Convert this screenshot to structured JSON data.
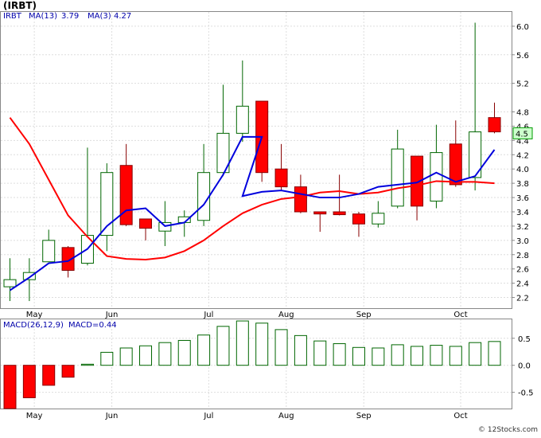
{
  "header": {
    "title": "(IRBT)"
  },
  "footer": {
    "copyright": "© 12Stocks.com"
  },
  "chart_data": [
    {
      "type": "candlestick",
      "ticker": "IRBT",
      "legend": {
        "ticker": "IRBT",
        "ma13_label": "MA(13)",
        "ma13_value": "3.79",
        "ma3_label": "MA(3)",
        "ma3_value": "4.27"
      },
      "x_labels": [
        "May",
        "Jun",
        "Jul",
        "Aug",
        "Sep",
        "Oct"
      ],
      "x_label_indices": [
        1.1,
        5.1,
        10.1,
        14.1,
        18.1,
        23.1
      ],
      "ylim": [
        2.05,
        6.2
      ],
      "y_ticks": [
        2.2,
        2.4,
        2.6,
        2.8,
        3.0,
        3.2,
        3.4,
        3.6,
        3.8,
        4.0,
        4.2,
        4.4,
        4.6,
        4.8,
        5.2,
        5.6,
        6.0
      ],
      "last_price_label": "4.5",
      "last_price": 4.5,
      "candles": [
        {
          "o": 2.35,
          "h": 2.75,
          "l": 2.15,
          "c": 2.45
        },
        {
          "o": 2.45,
          "h": 2.75,
          "l": 2.15,
          "c": 2.55
        },
        {
          "o": 2.7,
          "h": 3.15,
          "l": 2.7,
          "c": 3.0
        },
        {
          "o": 2.9,
          "h": 2.92,
          "l": 2.48,
          "c": 2.58
        },
        {
          "o": 2.68,
          "h": 4.3,
          "l": 2.65,
          "c": 3.07
        },
        {
          "o": 3.07,
          "h": 4.08,
          "l": 2.85,
          "c": 3.95
        },
        {
          "o": 4.05,
          "h": 4.35,
          "l": 3.2,
          "c": 3.22
        },
        {
          "o": 3.3,
          "h": 3.3,
          "l": 3.0,
          "c": 3.17
        },
        {
          "o": 3.13,
          "h": 3.55,
          "l": 2.92,
          "c": 3.25
        },
        {
          "o": 3.25,
          "h": 3.42,
          "l": 3.05,
          "c": 3.33
        },
        {
          "o": 3.28,
          "h": 4.35,
          "l": 3.2,
          "c": 3.95
        },
        {
          "o": 3.95,
          "h": 5.18,
          "l": 3.9,
          "c": 4.5
        },
        {
          "o": 4.5,
          "h": 5.52,
          "l": 4.38,
          "c": 4.88
        },
        {
          "o": 4.95,
          "h": 4.95,
          "l": 3.82,
          "c": 3.95
        },
        {
          "o": 4.0,
          "h": 4.35,
          "l": 3.7,
          "c": 3.75
        },
        {
          "o": 3.75,
          "h": 3.92,
          "l": 3.38,
          "c": 3.4
        },
        {
          "o": 3.4,
          "h": 3.4,
          "l": 3.12,
          "c": 3.37
        },
        {
          "o": 3.4,
          "h": 3.92,
          "l": 3.35,
          "c": 3.36
        },
        {
          "o": 3.37,
          "h": 3.4,
          "l": 3.05,
          "c": 3.23
        },
        {
          "o": 3.23,
          "h": 3.55,
          "l": 3.18,
          "c": 3.38
        },
        {
          "o": 3.48,
          "h": 4.55,
          "l": 3.45,
          "c": 4.28
        },
        {
          "o": 4.18,
          "h": 4.18,
          "l": 3.28,
          "c": 3.48
        },
        {
          "o": 3.55,
          "h": 4.62,
          "l": 3.45,
          "c": 4.23
        },
        {
          "o": 4.35,
          "h": 4.68,
          "l": 3.75,
          "c": 3.78
        },
        {
          "o": 3.88,
          "h": 6.05,
          "l": 3.7,
          "c": 4.52
        },
        {
          "o": 4.72,
          "h": 4.93,
          "l": 4.5,
          "c": 4.52
        }
      ],
      "ma13": [
        4.72,
        4.35,
        3.85,
        3.35,
        3.05,
        2.78,
        2.74,
        2.73,
        2.76,
        2.85,
        3.0,
        3.2,
        3.38,
        3.5,
        3.58,
        3.61,
        3.67,
        3.69,
        3.65,
        3.67,
        3.73,
        3.77,
        3.83,
        3.82,
        3.82,
        3.8
      ],
      "ma3": [
        2.3,
        2.48,
        2.68,
        2.71,
        2.88,
        3.2,
        3.42,
        3.45,
        3.2,
        3.25,
        3.5,
        3.92,
        4.45,
        4.45,
        null,
        null,
        null,
        null,
        null,
        null,
        null,
        null,
        null,
        null,
        null,
        null
      ],
      "ma3_tail": [
        3.62,
        3.68,
        3.7,
        3.65,
        3.6,
        3.6,
        3.65,
        3.75,
        3.78,
        3.81,
        3.95,
        3.82,
        3.9,
        4.27
      ],
      "colors": {
        "up": "#ffffff",
        "up_border": "#006600",
        "down": "#ff0000",
        "down_border": "#880000",
        "ma13": "#ff0000",
        "ma3": "#0000dd",
        "price_box": "#ccffcc"
      }
    },
    {
      "type": "bar",
      "title": "MACD(26,12,9)",
      "legend": {
        "label": "MACD(26,12,9)",
        "value_label": "MACD=0.44"
      },
      "ylim": [
        -0.8,
        0.85
      ],
      "y_ticks": [
        0.5,
        0.0,
        -0.5
      ],
      "y_tick_labels": [
        "0.5",
        "0.0",
        "-0.5"
      ],
      "values": [
        -0.8,
        -0.6,
        -0.37,
        -0.22,
        0.02,
        0.24,
        0.32,
        0.36,
        0.42,
        0.46,
        0.56,
        0.72,
        0.82,
        0.78,
        0.66,
        0.55,
        0.45,
        0.4,
        0.33,
        0.32,
        0.38,
        0.35,
        0.37,
        0.35,
        0.42,
        0.44
      ],
      "x_labels": [
        "May",
        "Jun",
        "Jul",
        "Aug",
        "Sep",
        "Oct"
      ],
      "x_label_indices": [
        1.1,
        5.1,
        10.1,
        14.1,
        18.1,
        23.1
      ],
      "colors": {
        "positive": "#006600",
        "negative": "#ff0000"
      }
    }
  ]
}
